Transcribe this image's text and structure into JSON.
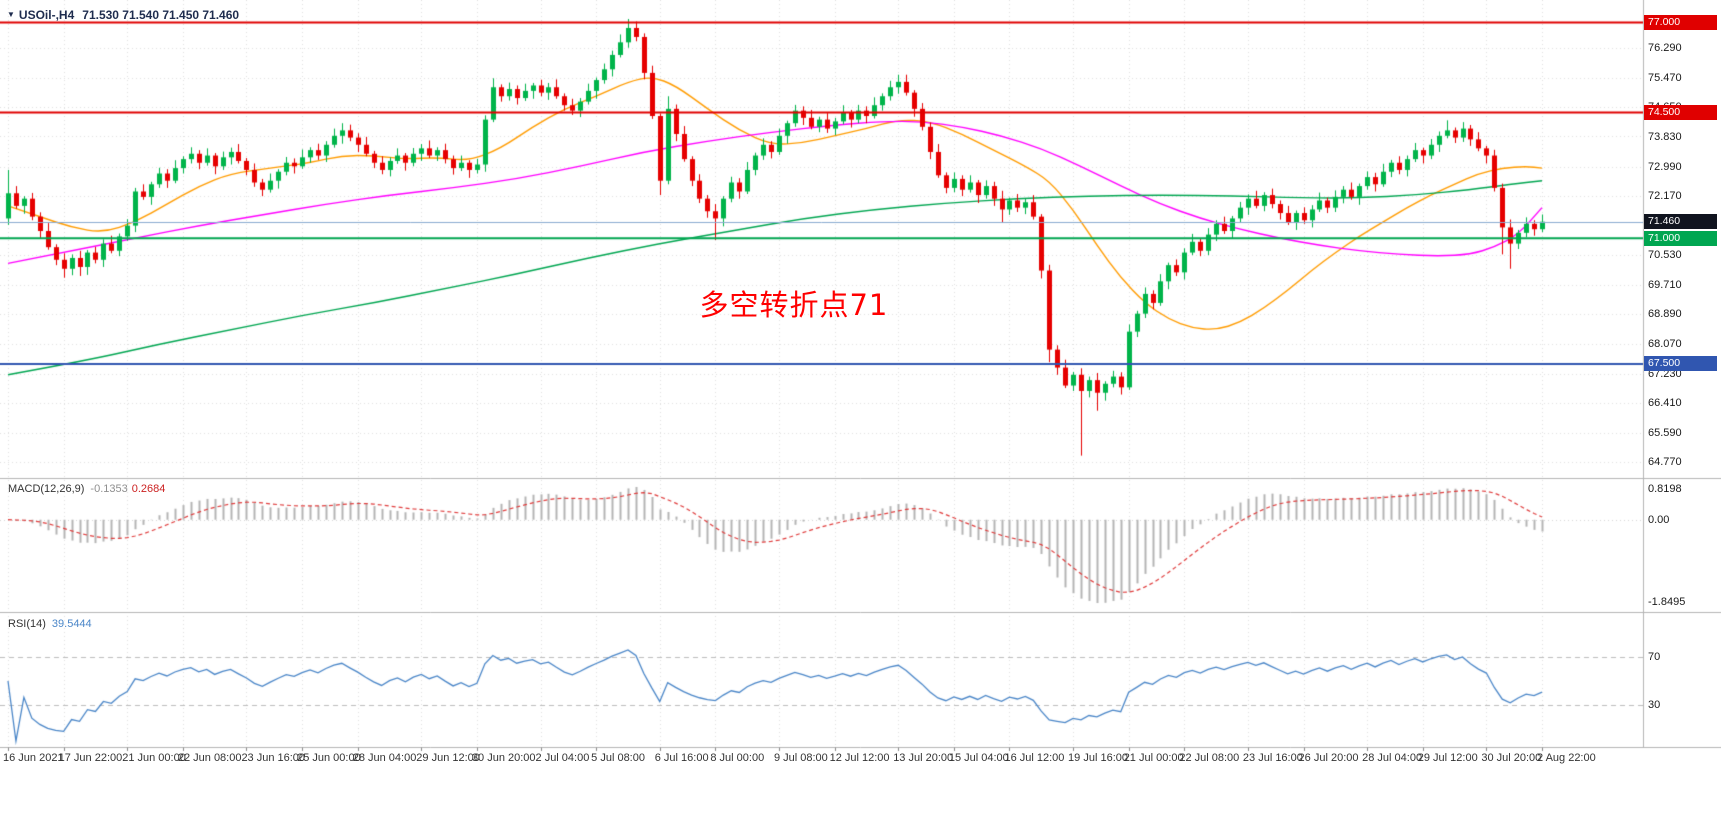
{
  "header": {
    "arrow": "▼",
    "symbol_period": "USOil-,H4",
    "quote": "71.530 71.540 71.450 71.460"
  },
  "chart_data": {
    "type": "candlestick",
    "title": "USOil-,H4",
    "timeframe": "H4",
    "quote_ohlc": [
      71.53,
      71.54,
      71.45,
      71.46
    ],
    "candle_colors": {
      "up": "#00b44a",
      "down": "#e60000"
    },
    "open0": 71.55,
    "closes": [
      72.25,
      71.9,
      72.1,
      71.6,
      71.2,
      70.75,
      70.4,
      70.15,
      70.45,
      70.2,
      70.6,
      70.4,
      70.85,
      70.65,
      71.05,
      71.35,
      72.3,
      72.15,
      72.5,
      72.8,
      72.6,
      72.95,
      73.2,
      73.35,
      73.1,
      73.3,
      73.0,
      73.25,
      73.4,
      73.15,
      72.9,
      72.55,
      72.35,
      72.6,
      72.85,
      73.1,
      73.0,
      73.25,
      73.45,
      73.3,
      73.6,
      73.85,
      74.0,
      73.8,
      73.6,
      73.35,
      73.1,
      72.9,
      73.15,
      73.3,
      73.1,
      73.35,
      73.5,
      73.3,
      73.45,
      73.2,
      72.95,
      73.1,
      72.9,
      73.05,
      74.3,
      75.2,
      74.95,
      75.15,
      74.9,
      75.1,
      75.25,
      75.05,
      75.2,
      74.95,
      74.7,
      74.55,
      74.8,
      75.1,
      75.4,
      75.7,
      76.1,
      76.45,
      76.85,
      76.6,
      75.6,
      74.4,
      72.6,
      74.6,
      73.9,
      73.2,
      72.6,
      72.1,
      71.75,
      71.55,
      72.1,
      72.55,
      72.3,
      72.9,
      73.3,
      73.6,
      73.4,
      73.85,
      74.2,
      74.55,
      74.35,
      74.1,
      74.3,
      74.05,
      74.25,
      74.5,
      74.3,
      74.55,
      74.4,
      74.7,
      74.95,
      75.2,
      75.35,
      75.05,
      74.6,
      74.1,
      73.4,
      72.75,
      72.4,
      72.65,
      72.35,
      72.55,
      72.2,
      72.45,
      72.1,
      71.8,
      72.05,
      71.85,
      72.0,
      71.6,
      70.1,
      67.9,
      67.4,
      66.9,
      67.2,
      66.75,
      67.05,
      66.7,
      66.95,
      67.15,
      66.85,
      68.4,
      68.9,
      69.45,
      69.2,
      69.8,
      70.25,
      70.05,
      70.6,
      70.9,
      70.65,
      71.1,
      71.4,
      71.2,
      71.55,
      71.85,
      72.1,
      71.9,
      72.2,
      71.95,
      71.7,
      71.45,
      71.7,
      71.5,
      71.8,
      72.05,
      71.85,
      72.15,
      72.35,
      72.15,
      72.45,
      72.7,
      72.5,
      72.85,
      73.1,
      72.9,
      73.2,
      73.45,
      73.3,
      73.6,
      73.85,
      74.0,
      73.8,
      74.05,
      73.75,
      73.5,
      73.3,
      72.4,
      71.3,
      70.85,
      71.15,
      71.4,
      71.25,
      71.46
    ],
    "wick_high_overrides": {
      "0": 72.9,
      "42": 74.2,
      "61": 75.45,
      "78": 77.1,
      "83": 74.95,
      "112": 75.55,
      "141": 68.6,
      "181": 74.28
    },
    "wick_low_overrides": {
      "7": 69.9,
      "9": 69.95,
      "82": 72.2,
      "89": 70.95,
      "125": 71.45,
      "131": 67.55,
      "135": 64.95,
      "137": 66.2,
      "188": 70.55,
      "189": 70.15
    },
    "y_axis": {
      "min": 64.55,
      "max": 77.35,
      "ticks": [
        {
          "v": 76.29,
          "t": "76.290"
        },
        {
          "v": 75.47,
          "t": "75.470"
        },
        {
          "v": 74.65,
          "t": "74.650"
        },
        {
          "v": 73.83,
          "t": "73.830"
        },
        {
          "v": 72.99,
          "t": "72.990"
        },
        {
          "v": 72.17,
          "t": "72.170"
        },
        {
          "v": 70.53,
          "t": "70.530"
        },
        {
          "v": 69.71,
          "t": "69.710"
        },
        {
          "v": 68.89,
          "t": "68.890"
        },
        {
          "v": 68.07,
          "t": "68.070"
        },
        {
          "v": 67.23,
          "t": "67.230"
        },
        {
          "v": 66.41,
          "t": "66.410"
        },
        {
          "v": 65.59,
          "t": "65.590"
        },
        {
          "v": 64.77,
          "t": "64.770"
        }
      ]
    },
    "x_ticks": [
      {
        "i": 0,
        "t": "16 Jun 2021"
      },
      {
        "i": 7,
        "t": "17 Jun 22:00"
      },
      {
        "i": 15,
        "t": "21 Jun 00:00"
      },
      {
        "i": 22,
        "t": "22 Jun 08:00"
      },
      {
        "i": 30,
        "t": "23 Jun 16:00"
      },
      {
        "i": 37,
        "t": "25 Jun 00:00"
      },
      {
        "i": 44,
        "t": "28 Jun 04:00"
      },
      {
        "i": 52,
        "t": "29 Jun 12:00"
      },
      {
        "i": 59,
        "t": "30 Jun 20:00"
      },
      {
        "i": 67,
        "t": "2 Jul 04:00"
      },
      {
        "i": 74,
        "t": "5 Jul 08:00"
      },
      {
        "i": 82,
        "t": "6 Jul 16:00"
      },
      {
        "i": 89,
        "t": "8 Jul 00:00"
      },
      {
        "i": 97,
        "t": "9 Jul 08:00"
      },
      {
        "i": 104,
        "t": "12 Jul 12:00"
      },
      {
        "i": 112,
        "t": "13 Jul 20:00"
      },
      {
        "i": 119,
        "t": "15 Jul 04:00"
      },
      {
        "i": 126,
        "t": "16 Jul 12:00"
      },
      {
        "i": 134,
        "t": "19 Jul 16:00"
      },
      {
        "i": 141,
        "t": "21 Jul 00:00"
      },
      {
        "i": 148,
        "t": "22 Jul 08:00"
      },
      {
        "i": 156,
        "t": "23 Jul 16:00"
      },
      {
        "i": 163,
        "t": "26 Jul 20:00"
      },
      {
        "i": 171,
        "t": "28 Jul 04:00"
      },
      {
        "i": 178,
        "t": "29 Jul 12:00"
      },
      {
        "i": 186,
        "t": "30 Jul 20:00"
      },
      {
        "i": 193,
        "t": "2 Aug 22:00"
      }
    ],
    "levels": [
      {
        "t": "77.000",
        "p": 77.0,
        "color": "#e00000",
        "w": 2
      },
      {
        "t": "74.500",
        "p": 74.5,
        "color": "#e00000",
        "w": 2
      },
      {
        "t": "71.000",
        "p": 71.0,
        "color": "#00a651",
        "w": 2
      },
      {
        "t": "67.500",
        "p": 67.5,
        "color": "#3056b0",
        "w": 2
      }
    ],
    "bid": {
      "t": "71.460",
      "p": 71.46,
      "line_color": "#8aabd1",
      "badge_bg": "#10141f"
    },
    "moving_averages": [
      {
        "name": "ma-fast-orange",
        "color": "#ff9c00",
        "width": 1.4,
        "points": [
          [
            0,
            71.9
          ],
          [
            4,
            71.6
          ],
          [
            8,
            71.3
          ],
          [
            12,
            71.15
          ],
          [
            16,
            71.45
          ],
          [
            20,
            71.95
          ],
          [
            24,
            72.45
          ],
          [
            28,
            72.8
          ],
          [
            33,
            72.95
          ],
          [
            38,
            73.1
          ],
          [
            42,
            73.3
          ],
          [
            46,
            73.3
          ],
          [
            50,
            73.2
          ],
          [
            54,
            73.25
          ],
          [
            58,
            73.15
          ],
          [
            62,
            73.5
          ],
          [
            66,
            74.1
          ],
          [
            70,
            74.6
          ],
          [
            74,
            74.95
          ],
          [
            78,
            75.35
          ],
          [
            81,
            75.5
          ],
          [
            84,
            75.25
          ],
          [
            88,
            74.6
          ],
          [
            92,
            74.0
          ],
          [
            96,
            73.6
          ],
          [
            100,
            73.65
          ],
          [
            104,
            73.85
          ],
          [
            108,
            74.05
          ],
          [
            112,
            74.3
          ],
          [
            116,
            74.25
          ],
          [
            120,
            73.9
          ],
          [
            124,
            73.45
          ],
          [
            128,
            73.0
          ],
          [
            131,
            72.6
          ],
          [
            134,
            71.8
          ],
          [
            137,
            70.8
          ],
          [
            140,
            69.9
          ],
          [
            143,
            69.2
          ],
          [
            146,
            68.75
          ],
          [
            149,
            68.5
          ],
          [
            152,
            68.45
          ],
          [
            155,
            68.65
          ],
          [
            158,
            69.05
          ],
          [
            161,
            69.55
          ],
          [
            164,
            70.1
          ],
          [
            167,
            70.6
          ],
          [
            170,
            71.05
          ],
          [
            173,
            71.45
          ],
          [
            176,
            71.85
          ],
          [
            179,
            72.2
          ],
          [
            182,
            72.5
          ],
          [
            185,
            72.8
          ],
          [
            188,
            72.95
          ],
          [
            191,
            73.0
          ],
          [
            193,
            72.95
          ]
        ]
      },
      {
        "name": "ma-mid-magenta",
        "color": "#ff00ff",
        "width": 1.4,
        "points": [
          [
            0,
            70.3
          ],
          [
            8,
            70.65
          ],
          [
            16,
            71.0
          ],
          [
            24,
            71.35
          ],
          [
            32,
            71.65
          ],
          [
            40,
            71.95
          ],
          [
            48,
            72.2
          ],
          [
            56,
            72.4
          ],
          [
            64,
            72.65
          ],
          [
            72,
            73.0
          ],
          [
            80,
            73.4
          ],
          [
            88,
            73.7
          ],
          [
            96,
            73.95
          ],
          [
            104,
            74.15
          ],
          [
            110,
            74.25
          ],
          [
            115,
            74.25
          ],
          [
            120,
            74.1
          ],
          [
            125,
            73.85
          ],
          [
            130,
            73.5
          ],
          [
            135,
            73.0
          ],
          [
            140,
            72.45
          ],
          [
            145,
            71.95
          ],
          [
            150,
            71.55
          ],
          [
            155,
            71.25
          ],
          [
            160,
            71.0
          ],
          [
            165,
            70.8
          ],
          [
            170,
            70.65
          ],
          [
            175,
            70.55
          ],
          [
            180,
            70.5
          ],
          [
            184,
            70.55
          ],
          [
            187,
            70.75
          ],
          [
            190,
            71.1
          ],
          [
            193,
            71.85
          ]
        ]
      },
      {
        "name": "ma-slow-green",
        "color": "#00a651",
        "width": 1.4,
        "points": [
          [
            0,
            67.2
          ],
          [
            10,
            67.6
          ],
          [
            19,
            68.05
          ],
          [
            28,
            68.45
          ],
          [
            37,
            68.85
          ],
          [
            46,
            69.2
          ],
          [
            55,
            69.6
          ],
          [
            64,
            70.0
          ],
          [
            73,
            70.45
          ],
          [
            82,
            70.85
          ],
          [
            91,
            71.2
          ],
          [
            100,
            71.55
          ],
          [
            109,
            71.8
          ],
          [
            118,
            71.98
          ],
          [
            127,
            72.1
          ],
          [
            136,
            72.18
          ],
          [
            145,
            72.2
          ],
          [
            154,
            72.18
          ],
          [
            163,
            72.12
          ],
          [
            170,
            72.12
          ],
          [
            177,
            72.2
          ],
          [
            184,
            72.35
          ],
          [
            189,
            72.5
          ],
          [
            193,
            72.6
          ]
        ]
      }
    ],
    "annotation": {
      "text": "多空转折点71",
      "bar": 87,
      "price": 69.3,
      "color": "#ff0000"
    },
    "macd": {
      "label": "MACD(12,26,9)",
      "value_main": "-0.1353",
      "value_signal": "0.2684",
      "fast": 12,
      "slow": 26,
      "signal": 9,
      "axis_top_label": "0.8198",
      "axis_zero_label": "0.00",
      "axis_bottom_label": "-1.8495",
      "hist_color": "#b5b5b5",
      "signal_color": "#e03c3c"
    },
    "rsi": {
      "label": "RSI(14)",
      "value": "39.5444",
      "period": 14,
      "color": "#4a86c8",
      "levels": [
        {
          "v": 70,
          "t": "70"
        },
        {
          "v": 30,
          "t": "30"
        }
      ]
    }
  }
}
